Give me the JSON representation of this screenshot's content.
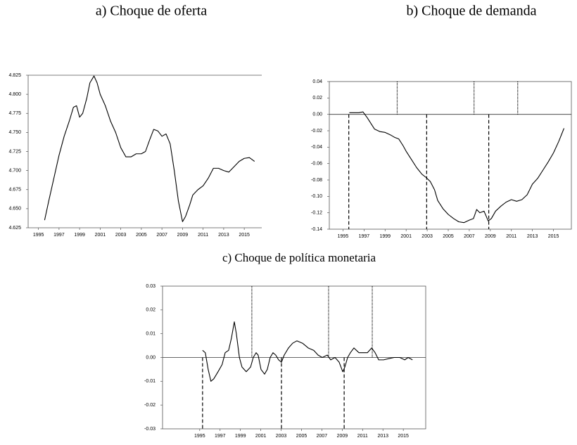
{
  "chart_data": [
    {
      "type": "line",
      "title": "a) Choque de oferta",
      "color": "#000000",
      "box": false,
      "xlim": [
        1994,
        2016.7
      ],
      "ylim": [
        4.625,
        4.825
      ],
      "xticks": [
        1995,
        1997,
        1999,
        2001,
        2003,
        2005,
        2007,
        2009,
        2011,
        2013,
        2015
      ],
      "yticks": [
        4.625,
        {
          "value": 4.65,
          "label": "4.650"
        },
        4.675,
        {
          "value": 4.7,
          "label": "4.700"
        },
        4.725,
        {
          "value": 4.75,
          "label": "4.750"
        },
        4.775,
        {
          "value": 4.8,
          "label": "4.800"
        },
        4.825
      ],
      "x": [
        1995.6,
        1996.0,
        1996.5,
        1997.0,
        1997.5,
        1998.0,
        1998.4,
        1998.7,
        1999.0,
        1999.3,
        1999.7,
        2000.0,
        2000.4,
        2000.7,
        2001.0,
        2001.5,
        2002.0,
        2002.5,
        2003.0,
        2003.5,
        2004.0,
        2004.5,
        2005.0,
        2005.4,
        2005.8,
        2006.2,
        2006.6,
        2007.0,
        2007.4,
        2007.8,
        2008.2,
        2008.6,
        2009.0,
        2009.3,
        2009.7,
        2010.0,
        2010.5,
        2011.0,
        2011.5,
        2012.0,
        2012.5,
        2013.0,
        2013.5,
        2014.0,
        2014.5,
        2015.0,
        2015.5,
        2016.0
      ],
      "values": [
        4.635,
        4.66,
        4.69,
        4.72,
        4.745,
        4.765,
        4.783,
        4.785,
        4.77,
        4.775,
        4.795,
        4.815,
        4.824,
        4.815,
        4.8,
        4.785,
        4.765,
        4.75,
        4.73,
        4.718,
        4.718,
        4.722,
        4.722,
        4.725,
        4.74,
        4.754,
        4.752,
        4.745,
        4.748,
        4.735,
        4.7,
        4.66,
        4.633,
        4.64,
        4.655,
        4.668,
        4.675,
        4.68,
        4.69,
        4.703,
        4.703,
        4.7,
        4.698,
        4.705,
        4.712,
        4.716,
        4.717,
        4.712
      ]
    },
    {
      "type": "line",
      "title": "b) Choque de demanda",
      "color": "#000000",
      "box": true,
      "xlim": [
        1993.7,
        2016.7
      ],
      "ylim": [
        -0.14,
        0.04
      ],
      "xticks": [
        1995,
        1997,
        1999,
        2001,
        2003,
        2005,
        2007,
        2009,
        2011,
        2013,
        2015
      ],
      "yticks": [
        0.04,
        0.02,
        {
          "value": 0,
          "label": "0.00"
        },
        -0.02,
        -0.04,
        -0.06,
        -0.08,
        {
          "value": -0.1,
          "label": "-0.10"
        },
        -0.12,
        -0.14
      ],
      "dotted_lines": [
        2000.15,
        2007.45,
        2011.6
      ],
      "dashed_lines": [
        1995.55,
        2002.95,
        2008.85
      ],
      "x": [
        1995.6,
        1996.5,
        1996.9,
        1997.3,
        1997.7,
        1998.0,
        1998.5,
        1999.0,
        1999.5,
        1999.9,
        2000.3,
        2000.7,
        2001.0,
        2001.5,
        2002.0,
        2002.5,
        2002.9,
        2003.3,
        2003.7,
        2004.0,
        2004.5,
        2005.0,
        2005.5,
        2006.0,
        2006.5,
        2007.0,
        2007.4,
        2007.7,
        2008.0,
        2008.4,
        2008.8,
        2009.1,
        2009.5,
        2010.0,
        2010.5,
        2011.0,
        2011.5,
        2012.0,
        2012.5,
        2013.0,
        2013.5,
        2014.0,
        2014.5,
        2015.0,
        2015.5,
        2016.0
      ],
      "values": [
        0.002,
        0.002,
        0.003,
        -0.004,
        -0.012,
        -0.018,
        -0.021,
        -0.022,
        -0.025,
        -0.028,
        -0.03,
        -0.038,
        -0.045,
        -0.055,
        -0.065,
        -0.073,
        -0.077,
        -0.082,
        -0.092,
        -0.105,
        -0.115,
        -0.122,
        -0.127,
        -0.131,
        -0.132,
        -0.129,
        -0.127,
        -0.116,
        -0.12,
        -0.118,
        -0.13,
        -0.127,
        -0.118,
        -0.112,
        -0.107,
        -0.104,
        -0.106,
        -0.104,
        -0.098,
        -0.085,
        -0.078,
        -0.068,
        -0.058,
        -0.047,
        -0.033,
        -0.017
      ]
    },
    {
      "type": "line",
      "title": "c) Choque de política monetaria",
      "color": "#000000",
      "box": true,
      "xlim": [
        1991.35,
        2017.2
      ],
      "ylim": [
        -0.03,
        0.03
      ],
      "xticks": [
        1995,
        1997,
        1999,
        2001,
        2003,
        2005,
        2007,
        2009,
        2011,
        2013,
        2015
      ],
      "yticks": [
        0.03,
        0.02,
        0.01,
        {
          "value": 0,
          "label": "0.00"
        },
        -0.01,
        -0.02,
        -0.03
      ],
      "dotted_lines": [
        2000.12,
        2007.66,
        2011.95
      ],
      "dashed_lines": [
        1995.28,
        2003.03,
        2009.19
      ],
      "x": [
        1995.28,
        1995.55,
        1995.83,
        1996.1,
        1996.38,
        1996.8,
        1997.2,
        1997.5,
        1997.84,
        1998.11,
        1998.4,
        1998.6,
        1998.9,
        1999.15,
        1999.57,
        2000.0,
        2000.26,
        2000.54,
        2000.74,
        2001.02,
        2001.37,
        2001.64,
        2001.92,
        2002.2,
        2002.47,
        2002.75,
        2003.03,
        2003.3,
        2003.72,
        2004.13,
        2004.55,
        2005.1,
        2005.66,
        2006.2,
        2006.63,
        2007.04,
        2007.53,
        2007.87,
        2008.29,
        2008.7,
        2009.05,
        2009.26,
        2009.53,
        2009.8,
        2010.15,
        2010.64,
        2011.06,
        2011.47,
        2011.89,
        2012.23,
        2012.58,
        2013.06,
        2013.55,
        2014.1,
        2014.65,
        2015.14,
        2015.48,
        2015.9
      ],
      "values": [
        0.003,
        0.002,
        -0.005,
        -0.01,
        -0.009,
        -0.006,
        -0.003,
        0.002,
        0.003,
        0.008,
        0.015,
        0.01,
        0.0,
        -0.004,
        -0.006,
        -0.004,
        0.0,
        0.002,
        0.001,
        -0.005,
        -0.007,
        -0.005,
        0.0,
        0.002,
        0.001,
        -0.001,
        -0.002,
        0.001,
        0.004,
        0.006,
        0.007,
        0.006,
        0.004,
        0.003,
        0.001,
        0.0,
        0.001,
        -0.001,
        0.0,
        -0.002,
        -0.006,
        -0.004,
        0.0,
        0.002,
        0.004,
        0.002,
        0.002,
        0.002,
        0.004,
        0.002,
        -0.001,
        -0.001,
        -0.0005,
        0.0,
        0.0,
        -0.001,
        0.0,
        -0.001
      ]
    }
  ]
}
